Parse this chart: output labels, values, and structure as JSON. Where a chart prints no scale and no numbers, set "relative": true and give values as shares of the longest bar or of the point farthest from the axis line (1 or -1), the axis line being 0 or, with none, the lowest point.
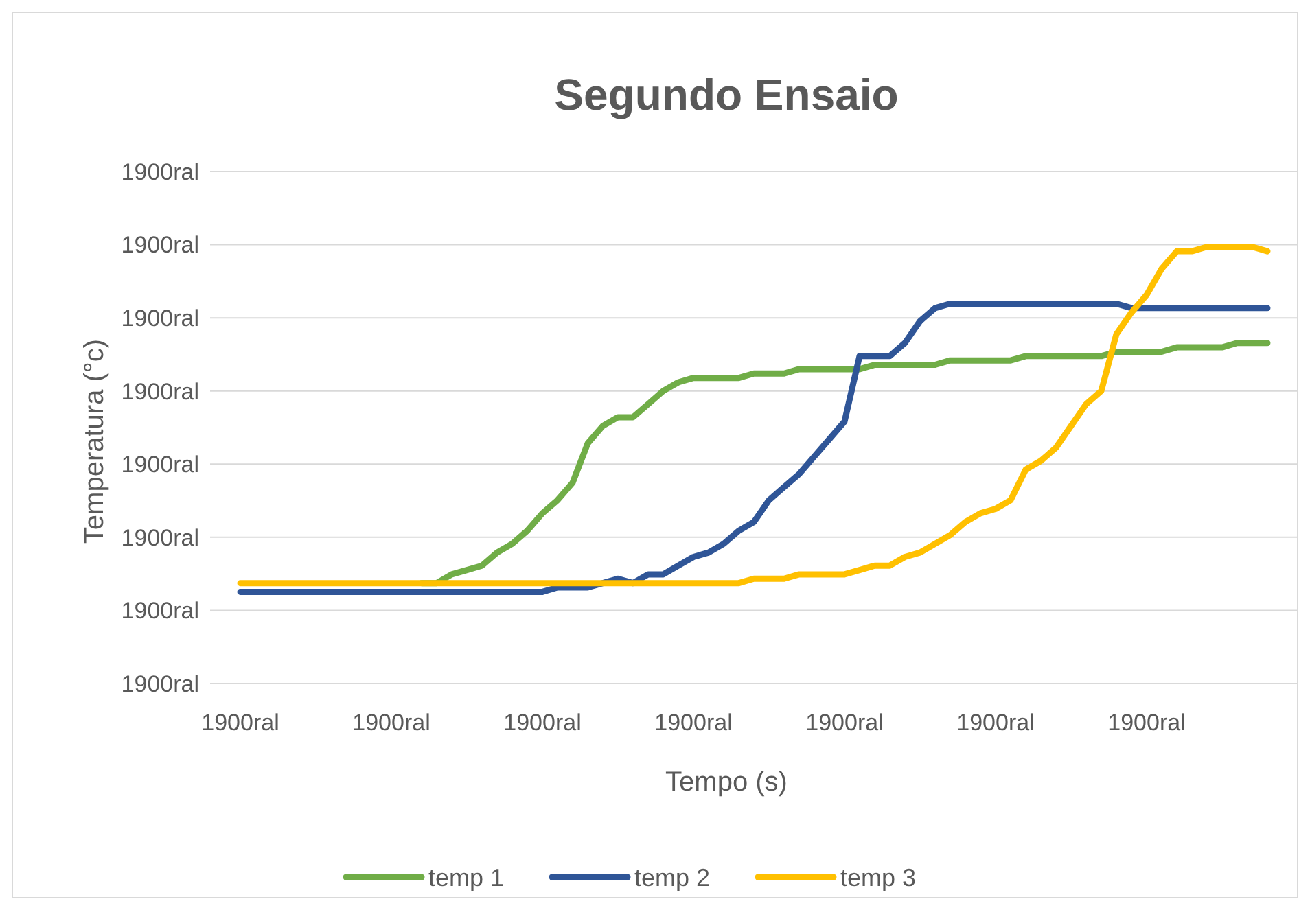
{
  "chart_data": {
    "type": "line",
    "title": "Segundo Ensaio",
    "xlabel": "Tempo (s)",
    "ylabel": "Temperatura (°c)",
    "relative": true,
    "categories": [
      "1900ral",
      null,
      null,
      null,
      null,
      null,
      null,
      null,
      null,
      null,
      "1900ral",
      null,
      null,
      null,
      null,
      null,
      null,
      null,
      null,
      null,
      "1900ral",
      null,
      null,
      null,
      null,
      null,
      null,
      null,
      null,
      null,
      "1900ral",
      null,
      null,
      null,
      null,
      null,
      null,
      null,
      null,
      null,
      "1900ral",
      null,
      null,
      null,
      null,
      null,
      null,
      null,
      null,
      null,
      "1900ral",
      null,
      null,
      null,
      null,
      null,
      null,
      null,
      null,
      null,
      "1900ral",
      null,
      null,
      null,
      null,
      null,
      null,
      null,
      null
    ],
    "annotations": [
      "1900ral",
      "1900ral",
      "1900ral",
      "1900ral",
      "1900ral",
      "1900ral",
      "1900ral",
      "1900ral"
    ],
    "grid": "y",
    "legend": "bottom",
    "marker": "none",
    "line_style": "solid",
    "series": [
      {
        "name": "temp 1",
        "color": "#70ad47",
        "values": [
          null,
          null,
          null,
          null,
          null,
          null,
          null,
          null,
          null,
          null,
          null,
          null,
          0.23,
          0.23,
          0.25,
          0.26,
          0.27,
          0.3,
          0.32,
          0.35,
          0.39,
          0.42,
          0.46,
          0.55,
          0.59,
          0.61,
          0.61,
          0.64,
          0.67,
          0.69,
          0.7,
          0.7,
          0.7,
          0.7,
          0.71,
          0.71,
          0.71,
          0.72,
          0.72,
          0.72,
          0.72,
          0.72,
          0.73,
          0.73,
          0.73,
          0.73,
          0.73,
          0.74,
          0.74,
          0.74,
          0.74,
          0.74,
          0.75,
          0.75,
          0.75,
          0.75,
          0.75,
          0.75,
          0.76,
          0.76,
          0.76,
          0.76,
          0.77,
          0.77,
          0.77,
          0.77,
          0.78,
          0.78,
          0.78
        ]
      },
      {
        "name": "temp 2",
        "color": "#2f5597",
        "values": [
          0.21,
          0.21,
          0.21,
          0.21,
          0.21,
          0.21,
          0.21,
          0.21,
          0.21,
          0.21,
          0.21,
          0.21,
          0.21,
          0.21,
          0.21,
          0.21,
          0.21,
          0.21,
          0.21,
          0.21,
          0.21,
          0.22,
          0.22,
          0.22,
          0.23,
          0.24,
          0.23,
          0.25,
          0.25,
          0.27,
          0.29,
          0.3,
          0.32,
          0.35,
          0.37,
          0.42,
          0.45,
          0.48,
          0.52,
          0.56,
          0.6,
          0.75,
          0.75,
          0.75,
          0.78,
          0.83,
          0.86,
          0.87,
          0.87,
          0.87,
          0.87,
          0.87,
          0.87,
          0.87,
          0.87,
          0.87,
          0.87,
          0.87,
          0.87,
          0.86,
          0.86,
          0.86,
          0.86,
          0.86,
          0.86,
          0.86,
          0.86,
          0.86,
          0.86
        ]
      },
      {
        "name": "temp 3",
        "color": "#ffc000",
        "values": [
          0.23,
          0.23,
          0.23,
          0.23,
          0.23,
          0.23,
          0.23,
          0.23,
          0.23,
          0.23,
          0.23,
          0.23,
          0.23,
          0.23,
          0.23,
          0.23,
          0.23,
          0.23,
          0.23,
          0.23,
          0.23,
          0.23,
          0.23,
          0.23,
          0.23,
          0.23,
          0.23,
          0.23,
          0.23,
          0.23,
          0.23,
          0.23,
          0.23,
          0.23,
          0.24,
          0.24,
          0.24,
          0.25,
          0.25,
          0.25,
          0.25,
          0.26,
          0.27,
          0.27,
          0.29,
          0.3,
          0.32,
          0.34,
          0.37,
          0.39,
          0.4,
          0.42,
          0.49,
          0.51,
          0.54,
          0.59,
          0.64,
          0.67,
          0.8,
          0.85,
          0.89,
          0.95,
          0.99,
          0.99,
          1,
          1,
          1,
          1,
          0.99
        ]
      }
    ]
  }
}
